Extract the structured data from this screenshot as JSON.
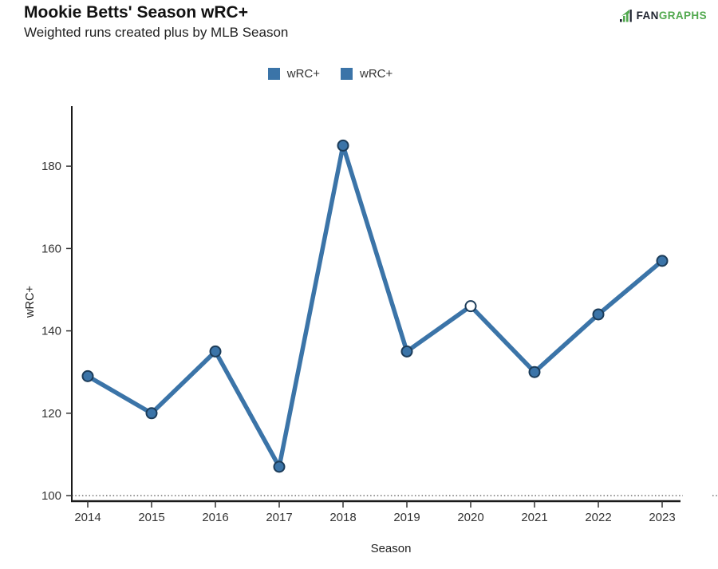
{
  "header": {
    "title": "Mookie Betts' Season wRC+",
    "subtitle": "Weighted runs created plus by MLB Season"
  },
  "logo": {
    "fan": "FAN",
    "graphs": "GRAPHS",
    "fan_color": "#1f2430",
    "graphs_color": "#52a94f"
  },
  "legend": {
    "items": [
      {
        "label": "wRC+",
        "color": "#3b74a8"
      },
      {
        "label": "wRC+",
        "color": "#3b74a8"
      }
    ]
  },
  "chart_data": {
    "type": "line",
    "title": "Mookie Betts' Season wRC+",
    "subtitle": "Weighted runs created plus by MLB Season",
    "xlabel": "Season",
    "ylabel": "wRC+",
    "x": [
      2014,
      2015,
      2016,
      2017,
      2018,
      2019,
      2020,
      2021,
      2022,
      2023
    ],
    "series": [
      {
        "name": "wRC+",
        "values": [
          129,
          120,
          135,
          107,
          185,
          135,
          146,
          130,
          144,
          157
        ]
      }
    ],
    "open_markers": [
      2020
    ],
    "yticks": [
      100,
      120,
      140,
      160,
      180
    ],
    "ylim": [
      99,
      194
    ],
    "reference_line": {
      "y": 100,
      "style": "dotted"
    },
    "grid": false,
    "legend_position": "top-center",
    "line_color": "#3b74a8",
    "marker_fill": "#3b74a8",
    "marker_open_fill": "#ffffff",
    "marker_stroke": "#1c3c59",
    "axis_color": "#1a1a1a",
    "tick_text_color": "#333333",
    "reference_line_color": "#555555"
  }
}
